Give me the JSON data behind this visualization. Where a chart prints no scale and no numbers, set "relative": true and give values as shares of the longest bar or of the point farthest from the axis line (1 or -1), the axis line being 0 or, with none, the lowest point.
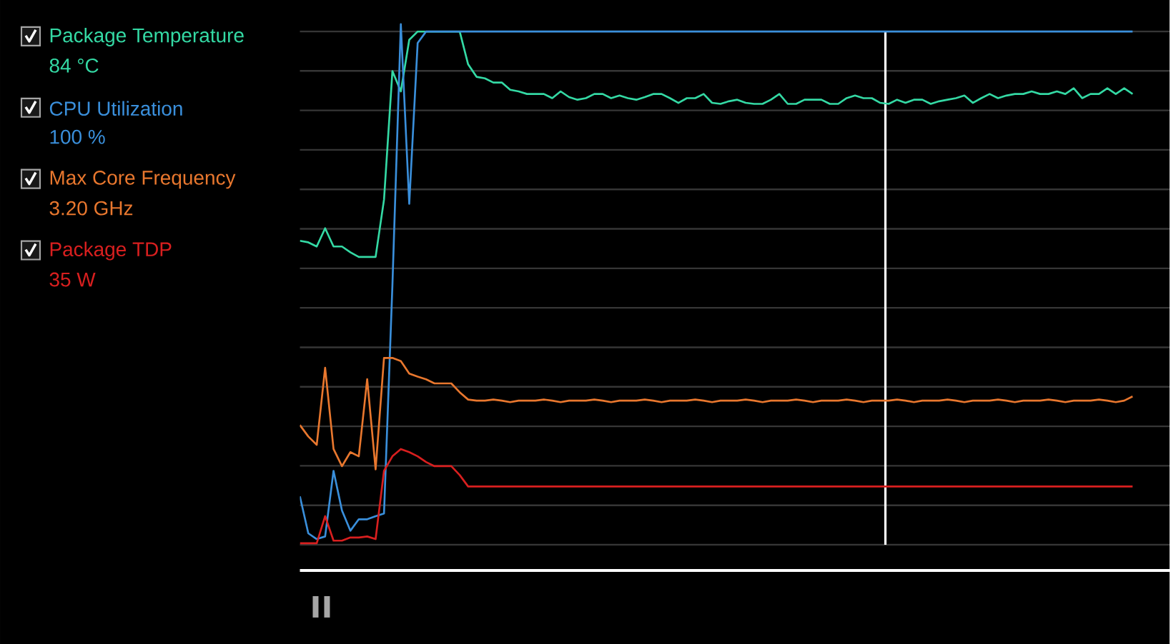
{
  "chart_data": {
    "type": "line",
    "relative": true,
    "grid": "y",
    "legend": "left",
    "marker": "none",
    "line_style": "solid",
    "categories": [
      null,
      null,
      null,
      null,
      null,
      null,
      null,
      null,
      null,
      null,
      null,
      null,
      null,
      null,
      null,
      null,
      null,
      null,
      null,
      null,
      null,
      null,
      null,
      null,
      null,
      null,
      null,
      null,
      null,
      null,
      null,
      null,
      null,
      null,
      null,
      null,
      null,
      null,
      null,
      null,
      null,
      null,
      null,
      null,
      null,
      null,
      null,
      null,
      null,
      null,
      null,
      null,
      null,
      null,
      null,
      null,
      null,
      null,
      null,
      null,
      null,
      null,
      null,
      null,
      null,
      null,
      null,
      null,
      null,
      null,
      null,
      null,
      null,
      null,
      null,
      null,
      null,
      null,
      null,
      null,
      null,
      null,
      null,
      null,
      null,
      null,
      null,
      null,
      null,
      null,
      null,
      null,
      null,
      null,
      null,
      null,
      null,
      null,
      null,
      null
    ],
    "series": [
      {
        "name": "Package Temperature",
        "color": "#34d9a4",
        "values": [
          0.584,
          0.581,
          0.573,
          0.608,
          0.573,
          0.573,
          0.562,
          0.553,
          0.553,
          0.553,
          0.663,
          0.91,
          0.871,
          0.97,
          0.986,
          0.986,
          0.986,
          0.986,
          0.986,
          0.986,
          0.923,
          0.899,
          0.896,
          0.888,
          0.888,
          0.874,
          0.871,
          0.866,
          0.866,
          0.866,
          0.858,
          0.871,
          0.86,
          0.855,
          0.858,
          0.866,
          0.866,
          0.858,
          0.863,
          0.858,
          0.855,
          0.86,
          0.866,
          0.866,
          0.858,
          0.849,
          0.858,
          0.858,
          0.866,
          0.849,
          0.847,
          0.852,
          0.855,
          0.849,
          0.847,
          0.847,
          0.855,
          0.866,
          0.847,
          0.847,
          0.855,
          0.855,
          0.855,
          0.847,
          0.847,
          0.858,
          0.863,
          0.858,
          0.858,
          0.849,
          0.847,
          0.855,
          0.849,
          0.855,
          0.855,
          0.847,
          0.852,
          0.855,
          0.858,
          0.863,
          0.849,
          0.858,
          0.866,
          0.858,
          0.863,
          0.866,
          0.866,
          0.871,
          0.866,
          0.866,
          0.871,
          0.866,
          0.877,
          0.858,
          0.866,
          0.866,
          0.877,
          0.866,
          0.877,
          0.866
        ]
      },
      {
        "name": "CPU Utilization",
        "color": "#3a8fdb",
        "values": [
          0.093,
          0.022,
          0.011,
          0.016,
          0.142,
          0.066,
          0.027,
          0.049,
          0.049,
          0.055,
          0.06,
          0.499,
          1.0,
          0.655,
          0.964,
          0.986,
          0.986,
          0.986,
          0.986,
          0.986,
          0.986,
          0.986,
          0.986,
          0.986,
          0.986,
          0.986,
          0.986,
          0.986,
          0.986,
          0.986,
          0.986,
          0.986,
          0.986,
          0.986,
          0.986,
          0.986,
          0.986,
          0.986,
          0.986,
          0.986,
          0.986,
          0.986,
          0.986,
          0.986,
          0.986,
          0.986,
          0.986,
          0.986,
          0.986,
          0.986,
          0.986,
          0.986,
          0.986,
          0.986,
          0.986,
          0.986,
          0.986,
          0.986,
          0.986,
          0.986,
          0.986,
          0.986,
          0.986,
          0.986,
          0.986,
          0.986,
          0.986,
          0.986,
          0.986,
          0.986,
          0.986,
          0.986,
          0.986,
          0.986,
          0.986,
          0.986,
          0.986,
          0.986,
          0.986,
          0.986,
          0.986,
          0.986,
          0.986,
          0.986,
          0.986,
          0.986,
          0.986,
          0.986,
          0.986,
          0.986,
          0.986,
          0.986,
          0.986,
          0.986,
          0.986,
          0.986,
          0.986,
          0.986,
          0.986,
          0.986
        ]
      },
      {
        "name": "Max Core Frequency",
        "color": "#e8772e",
        "values": [
          0.23,
          0.208,
          0.192,
          0.34,
          0.184,
          0.151,
          0.178,
          0.17,
          0.318,
          0.145,
          0.359,
          0.359,
          0.353,
          0.329,
          0.323,
          0.318,
          0.31,
          0.31,
          0.31,
          0.293,
          0.279,
          0.277,
          0.277,
          0.279,
          0.277,
          0.274,
          0.277,
          0.277,
          0.277,
          0.279,
          0.277,
          0.274,
          0.277,
          0.277,
          0.277,
          0.279,
          0.277,
          0.274,
          0.277,
          0.277,
          0.277,
          0.279,
          0.277,
          0.274,
          0.277,
          0.277,
          0.277,
          0.279,
          0.277,
          0.274,
          0.277,
          0.277,
          0.277,
          0.279,
          0.277,
          0.274,
          0.277,
          0.277,
          0.277,
          0.279,
          0.277,
          0.274,
          0.277,
          0.277,
          0.277,
          0.279,
          0.277,
          0.274,
          0.277,
          0.277,
          0.277,
          0.279,
          0.277,
          0.274,
          0.277,
          0.277,
          0.277,
          0.279,
          0.277,
          0.274,
          0.277,
          0.277,
          0.277,
          0.279,
          0.277,
          0.274,
          0.277,
          0.277,
          0.277,
          0.279,
          0.277,
          0.274,
          0.277,
          0.277,
          0.277,
          0.279,
          0.277,
          0.274,
          0.277,
          0.285
        ]
      },
      {
        "name": "Package TDP",
        "color": "#d81f1f",
        "values": [
          0.003,
          0.003,
          0.003,
          0.055,
          0.008,
          0.008,
          0.014,
          0.014,
          0.016,
          0.011,
          0.142,
          0.17,
          0.184,
          0.178,
          0.17,
          0.159,
          0.151,
          0.151,
          0.151,
          0.134,
          0.112,
          0.112,
          0.112,
          0.112,
          0.112,
          0.112,
          0.112,
          0.112,
          0.112,
          0.112,
          0.112,
          0.112,
          0.112,
          0.112,
          0.112,
          0.112,
          0.112,
          0.112,
          0.112,
          0.112,
          0.112,
          0.112,
          0.112,
          0.112,
          0.112,
          0.112,
          0.112,
          0.112,
          0.112,
          0.112,
          0.112,
          0.112,
          0.112,
          0.112,
          0.112,
          0.112,
          0.112,
          0.112,
          0.112,
          0.112,
          0.112,
          0.112,
          0.112,
          0.112,
          0.112,
          0.112,
          0.112,
          0.112,
          0.112,
          0.112,
          0.112,
          0.112,
          0.112,
          0.112,
          0.112,
          0.112,
          0.112,
          0.112,
          0.112,
          0.112,
          0.112,
          0.112,
          0.112,
          0.112,
          0.112,
          0.112,
          0.112,
          0.112,
          0.112,
          0.112,
          0.112,
          0.112,
          0.112,
          0.112,
          0.112,
          0.112,
          0.112,
          0.112,
          0.112,
          0.112
        ]
      }
    ],
    "annotations": [
      "84 °C",
      "100 %",
      "3.20 GHz",
      "35 W"
    ]
  }
}
